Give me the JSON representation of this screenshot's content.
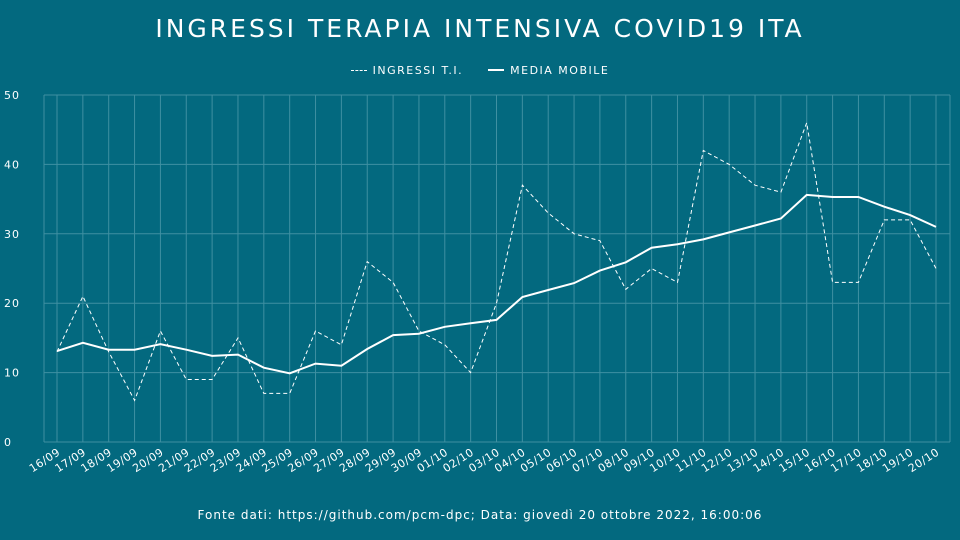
{
  "chart_data": {
    "type": "line",
    "title": "INGRESSI TERAPIA INTENSIVA COVID19 ITA",
    "categories": [
      "16/09",
      "17/09",
      "18/09",
      "19/09",
      "20/09",
      "21/09",
      "22/09",
      "23/09",
      "24/09",
      "25/09",
      "26/09",
      "27/09",
      "28/09",
      "29/09",
      "30/09",
      "01/10",
      "02/10",
      "03/10",
      "04/10",
      "05/10",
      "06/10",
      "07/10",
      "08/10",
      "09/10",
      "10/10",
      "11/10",
      "12/10",
      "13/10",
      "14/10",
      "15/10",
      "16/10",
      "17/10",
      "18/10",
      "19/10",
      "20/10"
    ],
    "series": [
      {
        "name": "INGRESSI T.I.",
        "style": "dashed",
        "values": [
          13,
          21,
          13,
          6,
          16,
          9,
          9,
          15,
          7,
          7,
          16,
          14,
          26,
          23,
          16,
          14,
          10,
          20,
          37,
          33,
          30,
          29,
          22,
          25,
          23,
          42,
          40,
          37,
          36,
          46,
          23,
          23,
          32,
          32,
          25
        ]
      },
      {
        "name": "MEDIA MOBILE",
        "style": "solid",
        "values": [
          13.1,
          14.3,
          13.3,
          13.3,
          14.1,
          13.3,
          12.4,
          12.6,
          10.7,
          9.9,
          11.3,
          11.0,
          13.4,
          15.4,
          15.6,
          16.6,
          17.1,
          17.6,
          20.9,
          21.9,
          22.9,
          24.7,
          25.9,
          28.0,
          28.5,
          29.2,
          30.2,
          31.2,
          32.2,
          35.6,
          35.3,
          35.3,
          33.9,
          32.7,
          31.0
        ]
      }
    ],
    "ylim": [
      0,
      50
    ],
    "yticks": [
      0,
      10,
      20,
      30,
      40,
      50
    ],
    "grid": true,
    "legend_position": "top-center",
    "colors": {
      "background": "#03697f",
      "line": "#ffffff",
      "grid": "#3f90a2"
    }
  },
  "source": "Fonte dati: https://github.com/pcm-dpc; Data: giovedì 20 ottobre 2022, 16:00:06"
}
